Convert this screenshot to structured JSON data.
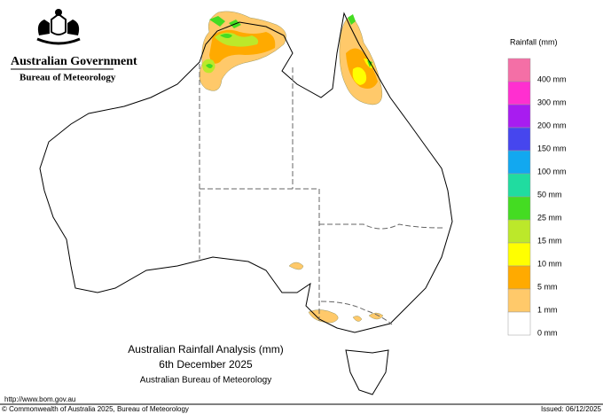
{
  "header": {
    "agency": "Australian Government",
    "bureau": "Bureau of Meteorology"
  },
  "title": {
    "line1": "Australian Rainfall Analysis (mm)",
    "line2": "6th December 2025",
    "line3": "Australian Bureau of Meteorology"
  },
  "legend": {
    "title": "Rainfall (mm)",
    "colors": [
      "#f46fa6",
      "#ff2fd0",
      "#a81cf0",
      "#4646ee",
      "#12a8f0",
      "#20dca0",
      "#44dc22",
      "#bce82a",
      "#ffff00",
      "#ffaa00",
      "#ffc96a",
      "#ffffff"
    ],
    "labels": [
      "400 mm",
      "300 mm",
      "200 mm",
      "150 mm",
      "100 mm",
      "50 mm",
      "25 mm",
      "15 mm",
      "10 mm",
      "5 mm",
      "1 mm",
      "0 mm"
    ]
  },
  "footer": {
    "url": "http://www.bom.gov.au",
    "copyright": "© Commonwealth of Australia 2025, Bureau of Meteorology",
    "issued": "Issued: 06/12/2025"
  }
}
